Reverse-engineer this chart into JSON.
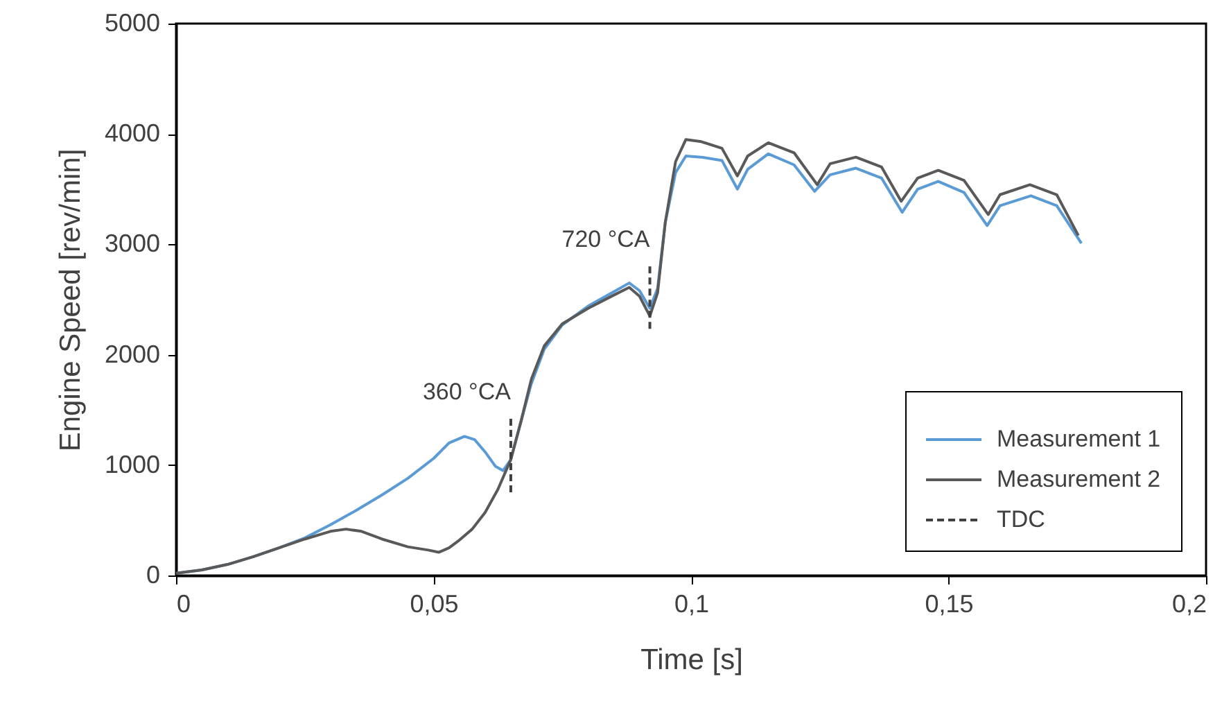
{
  "chart_data": {
    "type": "line",
    "xlabel": "Time [s]",
    "ylabel": "Engine Speed [rev/min]",
    "xlim": [
      0,
      0.2
    ],
    "xticks": [
      0,
      {
        "value": 0.05,
        "label": "0,05"
      },
      {
        "value": 0.1,
        "label": "0,1"
      },
      {
        "value": 0.15,
        "label": "0,15"
      },
      {
        "value": 0.2,
        "label": "0,2"
      }
    ],
    "ylim": [
      0,
      5000
    ],
    "yticks": [
      0,
      1000,
      2000,
      3000,
      4000,
      5000
    ],
    "grid": false,
    "legend": "bottom right",
    "series": [
      {
        "name": "Measurement 1",
        "color": "#5b9bd5",
        "line_style": "solid",
        "x": [
          0,
          0.005,
          0.01,
          0.015,
          0.02,
          0.025,
          0.03,
          0.035,
          0.04,
          0.045,
          0.05,
          0.053,
          0.056,
          0.058,
          0.06,
          0.062,
          0.0635,
          0.065,
          0.067,
          0.069,
          0.0715,
          0.075,
          0.08,
          0.085,
          0.088,
          0.09,
          0.092,
          0.0935,
          0.095,
          0.097,
          0.099,
          0.102,
          0.106,
          0.109,
          0.111,
          0.115,
          0.12,
          0.124,
          0.127,
          0.132,
          0.137,
          0.141,
          0.144,
          0.148,
          0.153,
          0.1575,
          0.16,
          0.166,
          0.171,
          0.1758
        ],
        "values": [
          20,
          50,
          100,
          170,
          250,
          340,
          460,
          590,
          730,
          880,
          1060,
          1200,
          1260,
          1230,
          1120,
          990,
          950,
          1050,
          1400,
          1740,
          2050,
          2270,
          2440,
          2570,
          2650,
          2580,
          2420,
          2600,
          3200,
          3650,
          3800,
          3790,
          3760,
          3500,
          3680,
          3820,
          3720,
          3480,
          3630,
          3690,
          3600,
          3290,
          3500,
          3570,
          3470,
          3170,
          3350,
          3440,
          3350,
          3010
        ]
      },
      {
        "name": "Measurement 2",
        "color": "#595959",
        "line_style": "solid",
        "x": [
          0,
          0.005,
          0.01,
          0.015,
          0.02,
          0.025,
          0.03,
          0.033,
          0.036,
          0.04,
          0.045,
          0.049,
          0.051,
          0.053,
          0.055,
          0.0575,
          0.06,
          0.0625,
          0.065,
          0.067,
          0.069,
          0.0715,
          0.075,
          0.08,
          0.085,
          0.088,
          0.09,
          0.092,
          0.0935,
          0.095,
          0.097,
          0.099,
          0.102,
          0.106,
          0.109,
          0.111,
          0.115,
          0.12,
          0.1245,
          0.127,
          0.132,
          0.137,
          0.1408,
          0.144,
          0.148,
          0.153,
          0.1577,
          0.16,
          0.1658,
          0.171,
          0.1752
        ],
        "values": [
          20,
          50,
          100,
          170,
          250,
          330,
          400,
          420,
          400,
          330,
          260,
          230,
          210,
          250,
          320,
          420,
          570,
          780,
          1050,
          1400,
          1780,
          2080,
          2280,
          2420,
          2540,
          2610,
          2530,
          2350,
          2560,
          3200,
          3750,
          3950,
          3930,
          3870,
          3620,
          3800,
          3920,
          3830,
          3540,
          3730,
          3790,
          3700,
          3390,
          3600,
          3670,
          3580,
          3270,
          3450,
          3540,
          3450,
          3080
        ]
      },
      {
        "name": "TDC",
        "color": "#404040",
        "line_style": "dashed",
        "x": [
          0.065,
          0.065,
          null,
          0.092,
          0.092
        ],
        "values": [
          1420,
          750,
          null,
          2800,
          2200
        ]
      }
    ],
    "annotations": [
      {
        "text": "360 °CA",
        "x": 0.065,
        "y": 1420
      },
      {
        "text": "720 °CA",
        "x": 0.092,
        "y": 2800
      }
    ]
  }
}
